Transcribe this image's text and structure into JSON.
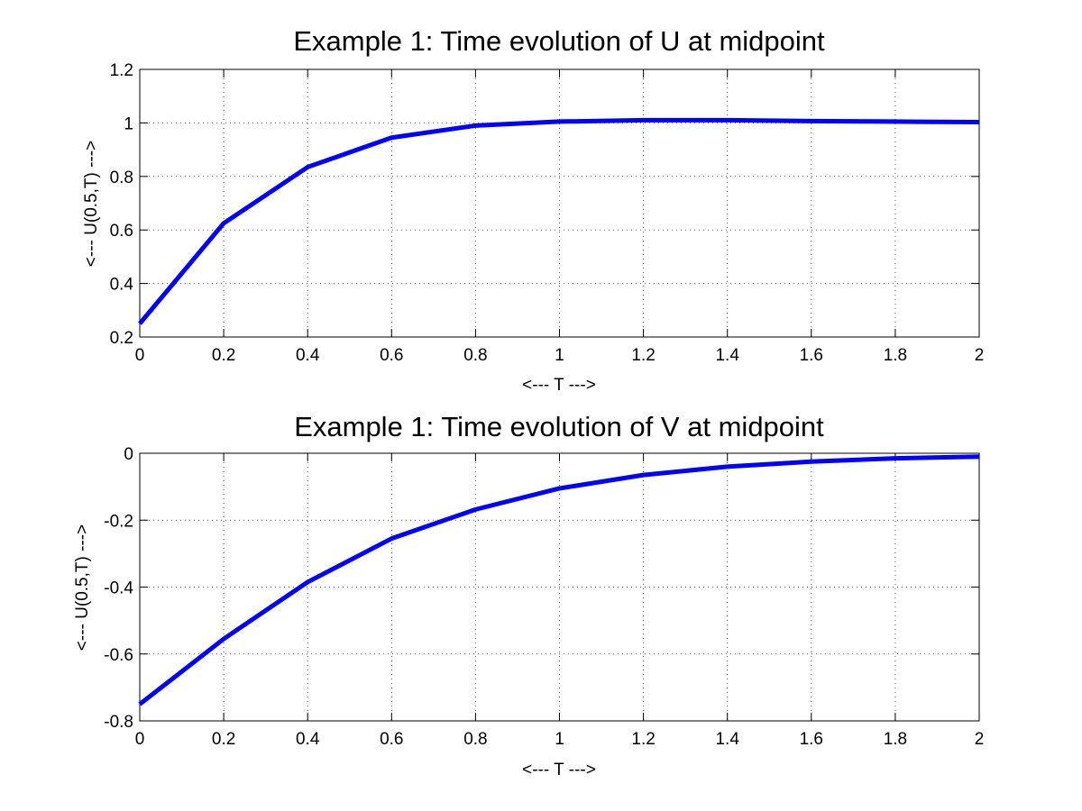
{
  "chart_data": [
    {
      "type": "line",
      "title": "Example 1: Time evolution of U at midpoint",
      "xlabel": "<--- T --->",
      "ylabel": "<--- U(0.5,T) --->",
      "xlim": [
        0,
        2
      ],
      "ylim": [
        0.2,
        1.2
      ],
      "xticks": [
        0,
        0.2,
        0.4,
        0.6,
        0.8,
        1,
        1.2,
        1.4,
        1.6,
        1.8,
        2
      ],
      "yticks": [
        0.2,
        0.4,
        0.6,
        0.8,
        1,
        1.2
      ],
      "grid": true,
      "color": "#0000ff",
      "x": [
        0,
        0.2,
        0.4,
        0.6,
        0.8,
        1.0,
        1.2,
        1.4,
        1.6,
        1.8,
        2.0
      ],
      "values": [
        0.25,
        0.625,
        0.835,
        0.945,
        0.99,
        1.005,
        1.01,
        1.01,
        1.007,
        1.005,
        1.003
      ]
    },
    {
      "type": "line",
      "title": "Example 1: Time evolution of V at midpoint",
      "xlabel": "<--- T --->",
      "ylabel": "<--- U(0.5,T) --->",
      "xlim": [
        0,
        2
      ],
      "ylim": [
        -0.8,
        0
      ],
      "xticks": [
        0,
        0.2,
        0.4,
        0.6,
        0.8,
        1,
        1.2,
        1.4,
        1.6,
        1.8,
        2
      ],
      "yticks": [
        -0.8,
        -0.6,
        -0.4,
        -0.2,
        0
      ],
      "grid": true,
      "color": "#0000ff",
      "x": [
        0,
        0.2,
        0.4,
        0.6,
        0.8,
        1.0,
        1.2,
        1.4,
        1.6,
        1.8,
        2.0
      ],
      "values": [
        -0.75,
        -0.555,
        -0.385,
        -0.255,
        -0.168,
        -0.105,
        -0.065,
        -0.04,
        -0.025,
        -0.015,
        -0.01
      ]
    }
  ]
}
